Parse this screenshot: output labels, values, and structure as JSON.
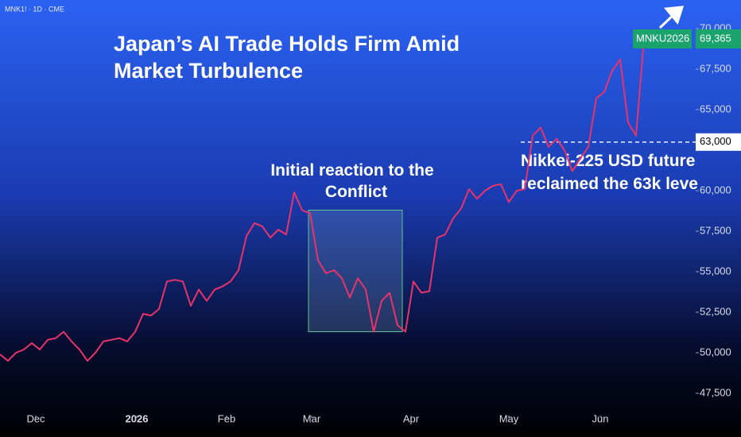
{
  "chart_data": {
    "type": "line",
    "header": "MNK1! · 1D · CME",
    "title": [
      "Japan’s AI Trade Holds Firm Amid",
      "Market Turbulence"
    ],
    "annotations": [
      {
        "lines": [
          "Initial reaction to the",
          "Conflict"
        ]
      },
      {
        "lines": [
          "Nikkei-225 USD future",
          "reclaimed the 63k leve"
        ]
      }
    ],
    "color": "#e8336b",
    "x": [
      0,
      1,
      2,
      3,
      4,
      5,
      6,
      7,
      8,
      9,
      10,
      11,
      12,
      13,
      14,
      15,
      16,
      17,
      18,
      19,
      20,
      21,
      22,
      23,
      24,
      25,
      26,
      27,
      28,
      29,
      30,
      31,
      32,
      33,
      34,
      35,
      36,
      37,
      38,
      39,
      40,
      41,
      42,
      43,
      44,
      45,
      46,
      47,
      48,
      49,
      50,
      51,
      52,
      53,
      54,
      55,
      56,
      57,
      58,
      59,
      60,
      61,
      62,
      63,
      64,
      65,
      66,
      67,
      68,
      69,
      70,
      71,
      72,
      73,
      74,
      75,
      76,
      77,
      78,
      79,
      80,
      81
    ],
    "values": [
      49900,
      49500,
      50000,
      50200,
      50600,
      50200,
      50800,
      50900,
      51300,
      50700,
      50200,
      49500,
      50000,
      50700,
      50800,
      50900,
      50700,
      51300,
      52400,
      52300,
      52700,
      54400,
      54500,
      54400,
      52900,
      53900,
      53200,
      53900,
      54100,
      54400,
      55100,
      57200,
      58000,
      57800,
      57100,
      57600,
      57300,
      59900,
      58800,
      58600,
      55700,
      54900,
      55100,
      54600,
      53400,
      54600,
      53900,
      51300,
      53200,
      53700,
      51700,
      51300,
      54400,
      53700,
      53800,
      57100,
      57300,
      58300,
      58900,
      60100,
      59500,
      60000,
      60300,
      60400,
      59300,
      60000,
      60100,
      63400,
      63900,
      62700,
      63200,
      62500,
      61200,
      62000,
      62700,
      65700,
      66100,
      67400,
      68100,
      64200,
      63400,
      69365
    ],
    "xlim": [
      0,
      87.5
    ],
    "xticks": [
      {
        "value": 4.5,
        "label": "Dec"
      },
      {
        "value": 17.2,
        "label": "2026"
      },
      {
        "value": 28.5,
        "label": "Feb"
      },
      {
        "value": 39.2,
        "label": "Mar"
      },
      {
        "value": 51.7,
        "label": "Apr"
      },
      {
        "value": 64,
        "label": "May"
      },
      {
        "value": 75.5,
        "label": "Jun"
      }
    ],
    "ylim": [
      46520,
      71765
    ],
    "yticks": [
      {
        "value": 47500,
        "label": "47,500"
      },
      {
        "value": 50000,
        "label": "50,000"
      },
      {
        "value": 52500,
        "label": "52,500"
      },
      {
        "value": 55000,
        "label": "55,000"
      },
      {
        "value": 57500,
        "label": "57,500"
      },
      {
        "value": 60000,
        "label": "60,000"
      },
      {
        "value": 65000,
        "label": "65,000"
      },
      {
        "value": 67500,
        "label": "67,500"
      },
      {
        "value": 70000,
        "label": "70,000"
      }
    ],
    "level": {
      "value": 63000,
      "label": "63,000"
    },
    "price_tag": {
      "symbol": "MNKU2026",
      "value": 69365,
      "label": "69,365"
    },
    "box": {
      "x": [
        38.8,
        50.6
      ],
      "y": [
        51300,
        58800
      ]
    }
  }
}
